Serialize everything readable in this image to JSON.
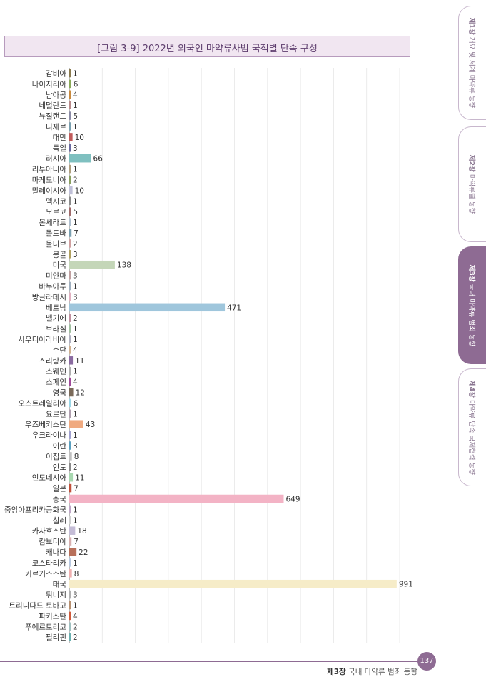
{
  "title": "[그림 3-9] 2022년 외국인 마약류사범 국적별 단속 구성",
  "side_tabs": [
    {
      "num": "제1장",
      "label": "개요 및 세계 마약류 동향"
    },
    {
      "num": "제2장",
      "label": "마약류별 동향"
    },
    {
      "num": "제3장",
      "label": "국내 마약류 범죄 동향"
    },
    {
      "num": "제4장",
      "label": "마약류 단속 국제협력 동향"
    }
  ],
  "footer": {
    "chapter": "제3장",
    "text": "국내 마약류 범죄 동향",
    "page": "137"
  },
  "chart_data": {
    "type": "bar",
    "orientation": "horizontal",
    "title": "[그림 3-9] 2022년 외국인 마약류사범 국적별 단속 구성",
    "xlim": [
      0,
      1000
    ],
    "grid": true,
    "categories": [
      "감비아",
      "나이지리아",
      "남아공",
      "네덜란드",
      "뉴질랜드",
      "니제르",
      "대만",
      "독일",
      "러시아",
      "리투아니아",
      "마케도니아",
      "말레이시아",
      "멕시코",
      "모로코",
      "몬세라트",
      "몰도바",
      "몰디브",
      "몽골",
      "미국",
      "미얀마",
      "바누아투",
      "방글라데시",
      "베트남",
      "벨기에",
      "브라질",
      "사우디아라비아",
      "수단",
      "스리랑카",
      "스웨덴",
      "스페인",
      "영국",
      "오스트레일리아",
      "요르단",
      "우즈베키스탄",
      "우크라이나",
      "이란",
      "이집트",
      "인도",
      "인도네시아",
      "일본",
      "중국",
      "중앙아프리카공화국",
      "칠레",
      "카자흐스탄",
      "캄보디아",
      "캐나다",
      "코스타리카",
      "키르기스스탄",
      "태국",
      "튀니지",
      "트리니다드 토바고",
      "파키스탄",
      "푸에르토리코",
      "필리핀"
    ],
    "values": [
      1,
      6,
      4,
      1,
      5,
      1,
      10,
      3,
      66,
      1,
      2,
      10,
      1,
      5,
      1,
      7,
      2,
      3,
      138,
      3,
      1,
      3,
      471,
      2,
      1,
      1,
      4,
      11,
      1,
      4,
      12,
      6,
      1,
      43,
      1,
      3,
      8,
      2,
      11,
      7,
      649,
      1,
      1,
      18,
      7,
      22,
      1,
      8,
      991,
      3,
      1,
      4,
      2,
      2
    ],
    "colors": [
      "#8a7a4e",
      "#8aaa5a",
      "#c98a3e",
      "#b98a8a",
      "#8a8aa5",
      "#7aa0b0",
      "#c05a5a",
      "#6a6aa0",
      "#7fc0c0",
      "#b0a080",
      "#8aa060",
      "#c0c0d8",
      "#8a8a8a",
      "#a06a6a",
      "#b0c0d0",
      "#7aa0b0",
      "#d0a0a0",
      "#b0a060",
      "#c4d6b8",
      "#c0a0a0",
      "#a0b0c0",
      "#e0b0c0",
      "#9fc6dc",
      "#c090a0",
      "#a0c0a0",
      "#b0b0c0",
      "#d0b090",
      "#8a6aa0",
      "#b0b0b0",
      "#a04a9a",
      "#7a6a5a",
      "#9ad6e6",
      "#b0a0b0",
      "#f0aa80",
      "#a0a0d0",
      "#5aa0c0",
      "#c0c0c0",
      "#8a8a8a",
      "#a8d8b0",
      "#c0503a",
      "#f3b3c5",
      "#c0a8c8",
      "#d0d0d0",
      "#c4bcd6",
      "#d8b0b0",
      "#b8705a",
      "#b8c8e0",
      "#f0b0b0",
      "#f6ecc8",
      "#b0b0b0",
      "#b89070",
      "#d05a3a",
      "#a0c0c0",
      "#6ab0b0"
    ]
  }
}
